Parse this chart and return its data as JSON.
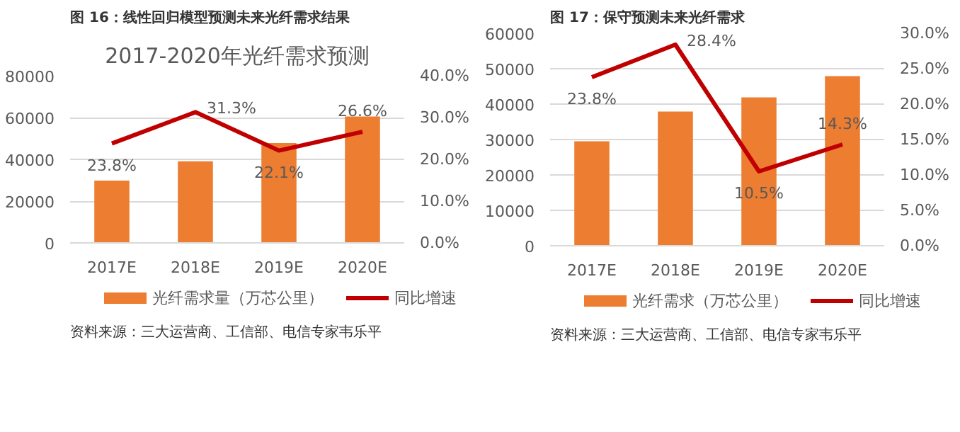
{
  "chart_data": [
    {
      "type": "bar",
      "title": "图 16：线性回归模型预测未来光纤需求结果",
      "subtitle": "2017-2020年光纤需求预测",
      "categories": [
        "2017E",
        "2018E",
        "2019E",
        "2020E"
      ],
      "series": [
        {
          "name": "光纤需求量（万芯公里）",
          "color": "#ed7d31",
          "values": [
            29800,
            39100,
            47800,
            60500
          ]
        },
        {
          "name": "同比增速",
          "type": "line",
          "axis": "y2",
          "color": "#c00000",
          "values": [
            23.8,
            31.3,
            22.1,
            26.6
          ],
          "value_labels": [
            "23.8%",
            "31.3%",
            "22.1%",
            "26.6%"
          ]
        }
      ],
      "ylim": [
        0,
        80000
      ],
      "yticks": [
        0,
        20000,
        40000,
        60000,
        80000
      ],
      "y2lim": [
        0,
        40
      ],
      "y2ticks": [
        {
          "value": 0,
          "label": "0.0%"
        },
        {
          "value": 10,
          "label": "10.0%"
        },
        {
          "value": 20,
          "label": "20.0%"
        },
        {
          "value": 30,
          "label": "30.0%"
        },
        {
          "value": 40,
          "label": "40.0%"
        }
      ],
      "grid": "y",
      "legend": "bottom",
      "marker": "none",
      "line_style": "solid",
      "annotations": [
        "资料来源：三大运营商、工信部、电信专家韦乐平"
      ]
    },
    {
      "type": "bar",
      "title": "图 17：保守预测未来光纤需求",
      "categories": [
        "2017E",
        "2018E",
        "2019E",
        "2020E"
      ],
      "series": [
        {
          "name": "光纤需求（万芯公里）",
          "color": "#ed7d31",
          "values": [
            29500,
            37900,
            41900,
            47900
          ]
        },
        {
          "name": "同比增速",
          "type": "line",
          "axis": "y2",
          "color": "#c00000",
          "values": [
            23.8,
            28.4,
            10.5,
            14.3
          ],
          "value_labels": [
            "23.8%",
            "28.4%",
            "10.5%",
            "14.3%"
          ]
        }
      ],
      "ylim": [
        0,
        60000
      ],
      "yticks": [
        0,
        10000,
        20000,
        30000,
        40000,
        50000,
        60000
      ],
      "y2lim": [
        0,
        30
      ],
      "y2ticks": [
        {
          "value": 0,
          "label": "0.0%"
        },
        {
          "value": 5,
          "label": "5.0%"
        },
        {
          "value": 10,
          "label": "10.0%"
        },
        {
          "value": 15,
          "label": "15.0%"
        },
        {
          "value": 20,
          "label": "20.0%"
        },
        {
          "value": 25,
          "label": "25.0%"
        },
        {
          "value": 30,
          "label": "30.0%"
        }
      ],
      "grid": "y",
      "legend": "bottom",
      "marker": "none",
      "line_style": "solid",
      "annotations": [
        "资料来源：三大运营商、工信部、电信专家韦乐平"
      ]
    }
  ]
}
